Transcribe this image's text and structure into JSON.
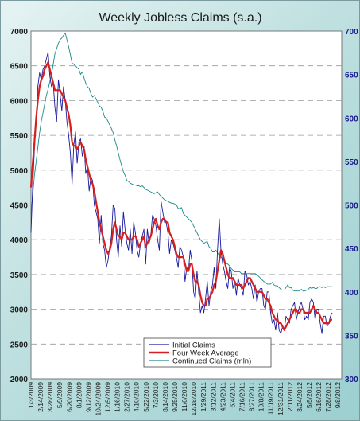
{
  "chart_data": {
    "type": "line",
    "title": "Weekly Jobless Claims (s.a.)",
    "x_tick_labels": [
      "1/3/2009",
      "2/14/2009",
      "3/28/2009",
      "5/9/2009",
      "6/20/2009",
      "8/1/2009",
      "9/12/2009",
      "10/24/2009",
      "12/5/2009",
      "1/16/2010",
      "2/27/2010",
      "4/10/2010",
      "5/22/2010",
      "7/3/2010",
      "8/14/2010",
      "9/25/2010",
      "11/6/2010",
      "12/18/2010",
      "1/29/2011",
      "3/12/2011",
      "4/23/2011",
      "6/4/2011",
      "7/16/2011",
      "8/27/2011",
      "10/8/2011",
      "11/19/2011",
      "12/31/2011",
      "2/11/2012",
      "3/24/2012",
      "5/5/2012",
      "6/16/2012",
      "7/28/2012",
      "9/8/2012"
    ],
    "y_left": {
      "min": 2000,
      "max": 7000,
      "step": 500,
      "tick_labels": [
        "2000",
        "2500",
        "3000",
        "3500",
        "4000",
        "4500",
        "5000",
        "5500",
        "6000",
        "6500",
        "7000"
      ]
    },
    "y_right": {
      "min": 300,
      "max": 700,
      "step": 50,
      "tick_labels": [
        "300",
        "350",
        "400",
        "450",
        "500",
        "550",
        "600",
        "650",
        "700"
      ]
    },
    "grid": "horizontal dashed",
    "legend_position": "bottom-center",
    "series": [
      {
        "name": "Initial Claims",
        "axis": "left",
        "color": "#1a1a9c",
        "values": [
          4100,
          4800,
          5300,
          5700,
          6200,
          6400,
          6300,
          6450,
          6500,
          6600,
          6700,
          6350,
          6200,
          6250,
          5900,
          5700,
          6300,
          6100,
          5850,
          6200,
          6000,
          5700,
          5500,
          5250,
          4800,
          5350,
          5550,
          5100,
          5400,
          5450,
          5200,
          5350,
          4950,
          5050,
          4700,
          4900,
          4850,
          4500,
          4400,
          4300,
          3950,
          4350,
          3950,
          3850,
          3600,
          3700,
          3900,
          4050,
          4500,
          4450,
          4000,
          3750,
          4200,
          3900,
          4400,
          4150,
          3950,
          3850,
          4150,
          3800,
          4250,
          4100,
          3850,
          3750,
          3950,
          4050,
          4150,
          3650,
          4150,
          3950,
          4050,
          4350,
          4300,
          4200,
          4000,
          3850,
          4550,
          4400,
          4250,
          4250,
          4100,
          3800,
          4000,
          3950,
          3850,
          3750,
          3600,
          3900,
          3850,
          3750,
          3400,
          3600,
          3550,
          3850,
          3700,
          3250,
          3150,
          3550,
          3250,
          2950,
          3050,
          2950,
          3150,
          3400,
          3050,
          3250,
          3350,
          3600,
          3300,
          3850,
          4300,
          3850,
          3650,
          3550,
          3400,
          3300,
          3600,
          3550,
          3300,
          3400,
          3200,
          3450,
          3350,
          3300,
          3200,
          3550,
          3500,
          3350,
          3400,
          3300,
          3150,
          3350,
          3100,
          3250,
          3300,
          3300,
          3050,
          3000,
          3250,
          3250,
          2950,
          2800,
          2850,
          2700,
          2950,
          2700,
          2650,
          2750,
          2700,
          2900,
          2850,
          2800,
          3000,
          3050,
          3100,
          2850,
          2950,
          3050,
          3100,
          3000,
          2850,
          2900,
          2850,
          3100,
          3150,
          3100,
          2850,
          3000,
          3000,
          2800,
          2650,
          2900,
          2900,
          2750,
          2800,
          2900,
          2950
        ]
      },
      {
        "name": "Four Week Average",
        "axis": "left",
        "color": "#d42020",
        "values": [
          4750,
          5100,
          5400,
          5750,
          6000,
          6200,
          6300,
          6350,
          6450,
          6500,
          6550,
          6450,
          6350,
          6250,
          6150,
          6150,
          6150,
          6150,
          6100,
          6050,
          6000,
          5900,
          5800,
          5650,
          5400,
          5350,
          5350,
          5300,
          5350,
          5400,
          5350,
          5300,
          5150,
          5050,
          4950,
          4850,
          4800,
          4700,
          4550,
          4400,
          4250,
          4150,
          4050,
          3950,
          3850,
          3800,
          3850,
          3950,
          4150,
          4250,
          4150,
          4050,
          4050,
          4000,
          4100,
          4100,
          4050,
          4000,
          4000,
          4000,
          4050,
          4050,
          4000,
          3900,
          3950,
          4000,
          4050,
          3900,
          3950,
          4000,
          4050,
          4150,
          4250,
          4300,
          4200,
          4150,
          4250,
          4300,
          4300,
          4250,
          4250,
          4100,
          4050,
          4000,
          3900,
          3800,
          3750,
          3750,
          3750,
          3750,
          3650,
          3550,
          3550,
          3650,
          3650,
          3500,
          3400,
          3400,
          3350,
          3200,
          3100,
          3050,
          3050,
          3150,
          3150,
          3200,
          3250,
          3350,
          3400,
          3550,
          3700,
          3850,
          3800,
          3700,
          3600,
          3500,
          3450,
          3450,
          3450,
          3400,
          3350,
          3350,
          3350,
          3350,
          3300,
          3350,
          3400,
          3450,
          3450,
          3400,
          3350,
          3300,
          3250,
          3250,
          3250,
          3250,
          3200,
          3150,
          3150,
          3100,
          3050,
          2950,
          2900,
          2850,
          2850,
          2800,
          2800,
          2750,
          2700,
          2750,
          2800,
          2850,
          2900,
          2950,
          3000,
          3000,
          2950,
          2950,
          3000,
          3000,
          2950,
          2950,
          2950,
          2950,
          3000,
          3050,
          3000,
          2950,
          2950,
          2900,
          2850,
          2800,
          2800,
          2800,
          2800,
          2850,
          2850
        ]
      },
      {
        "name": "Continued Claims (mln)",
        "axis": "right",
        "color": "#1a8a8a",
        "values": [
          490,
          512,
          534,
          550,
          566,
          583,
          596,
          606,
          616,
          626,
          633,
          642,
          650,
          662,
          674,
          680,
          686,
          690,
          692,
          695,
          698,
          690,
          682,
          673,
          663,
          662,
          660,
          658,
          656,
          650,
          653,
          646,
          640,
          636,
          634,
          628,
          624,
          626,
          622,
          618,
          614,
          612,
          608,
          601,
          600,
          596,
          592,
          588,
          583,
          575,
          568,
          560,
          552,
          545,
          538,
          534,
          528,
          527,
          525,
          524,
          523,
          523,
          522,
          522,
          521,
          522,
          520,
          518,
          517,
          516,
          515,
          514,
          513,
          514,
          515,
          512,
          510,
          508,
          506,
          505,
          504,
          503,
          502,
          502,
          501,
          500,
          496,
          496,
          497,
          490,
          488,
          486,
          484,
          482,
          480,
          476,
          472,
          468,
          464,
          460,
          458,
          456,
          457,
          458,
          452,
          450,
          446,
          446,
          448,
          445,
          442,
          440,
          438,
          436,
          433,
          432,
          430,
          427,
          425,
          423,
          423,
          423,
          423,
          421,
          421,
          421,
          421,
          421,
          421,
          421,
          421,
          421,
          420,
          418,
          416,
          414,
          412,
          411,
          409,
          409,
          409,
          411,
          408,
          407,
          407,
          405,
          403,
          402,
          402,
          405,
          408,
          405,
          405,
          402,
          401,
          401,
          401,
          401,
          403,
          401,
          401,
          402,
          403,
          405,
          404,
          405,
          404,
          404,
          406,
          406,
          405,
          406,
          405,
          406,
          406,
          406,
          406
        ]
      }
    ]
  }
}
